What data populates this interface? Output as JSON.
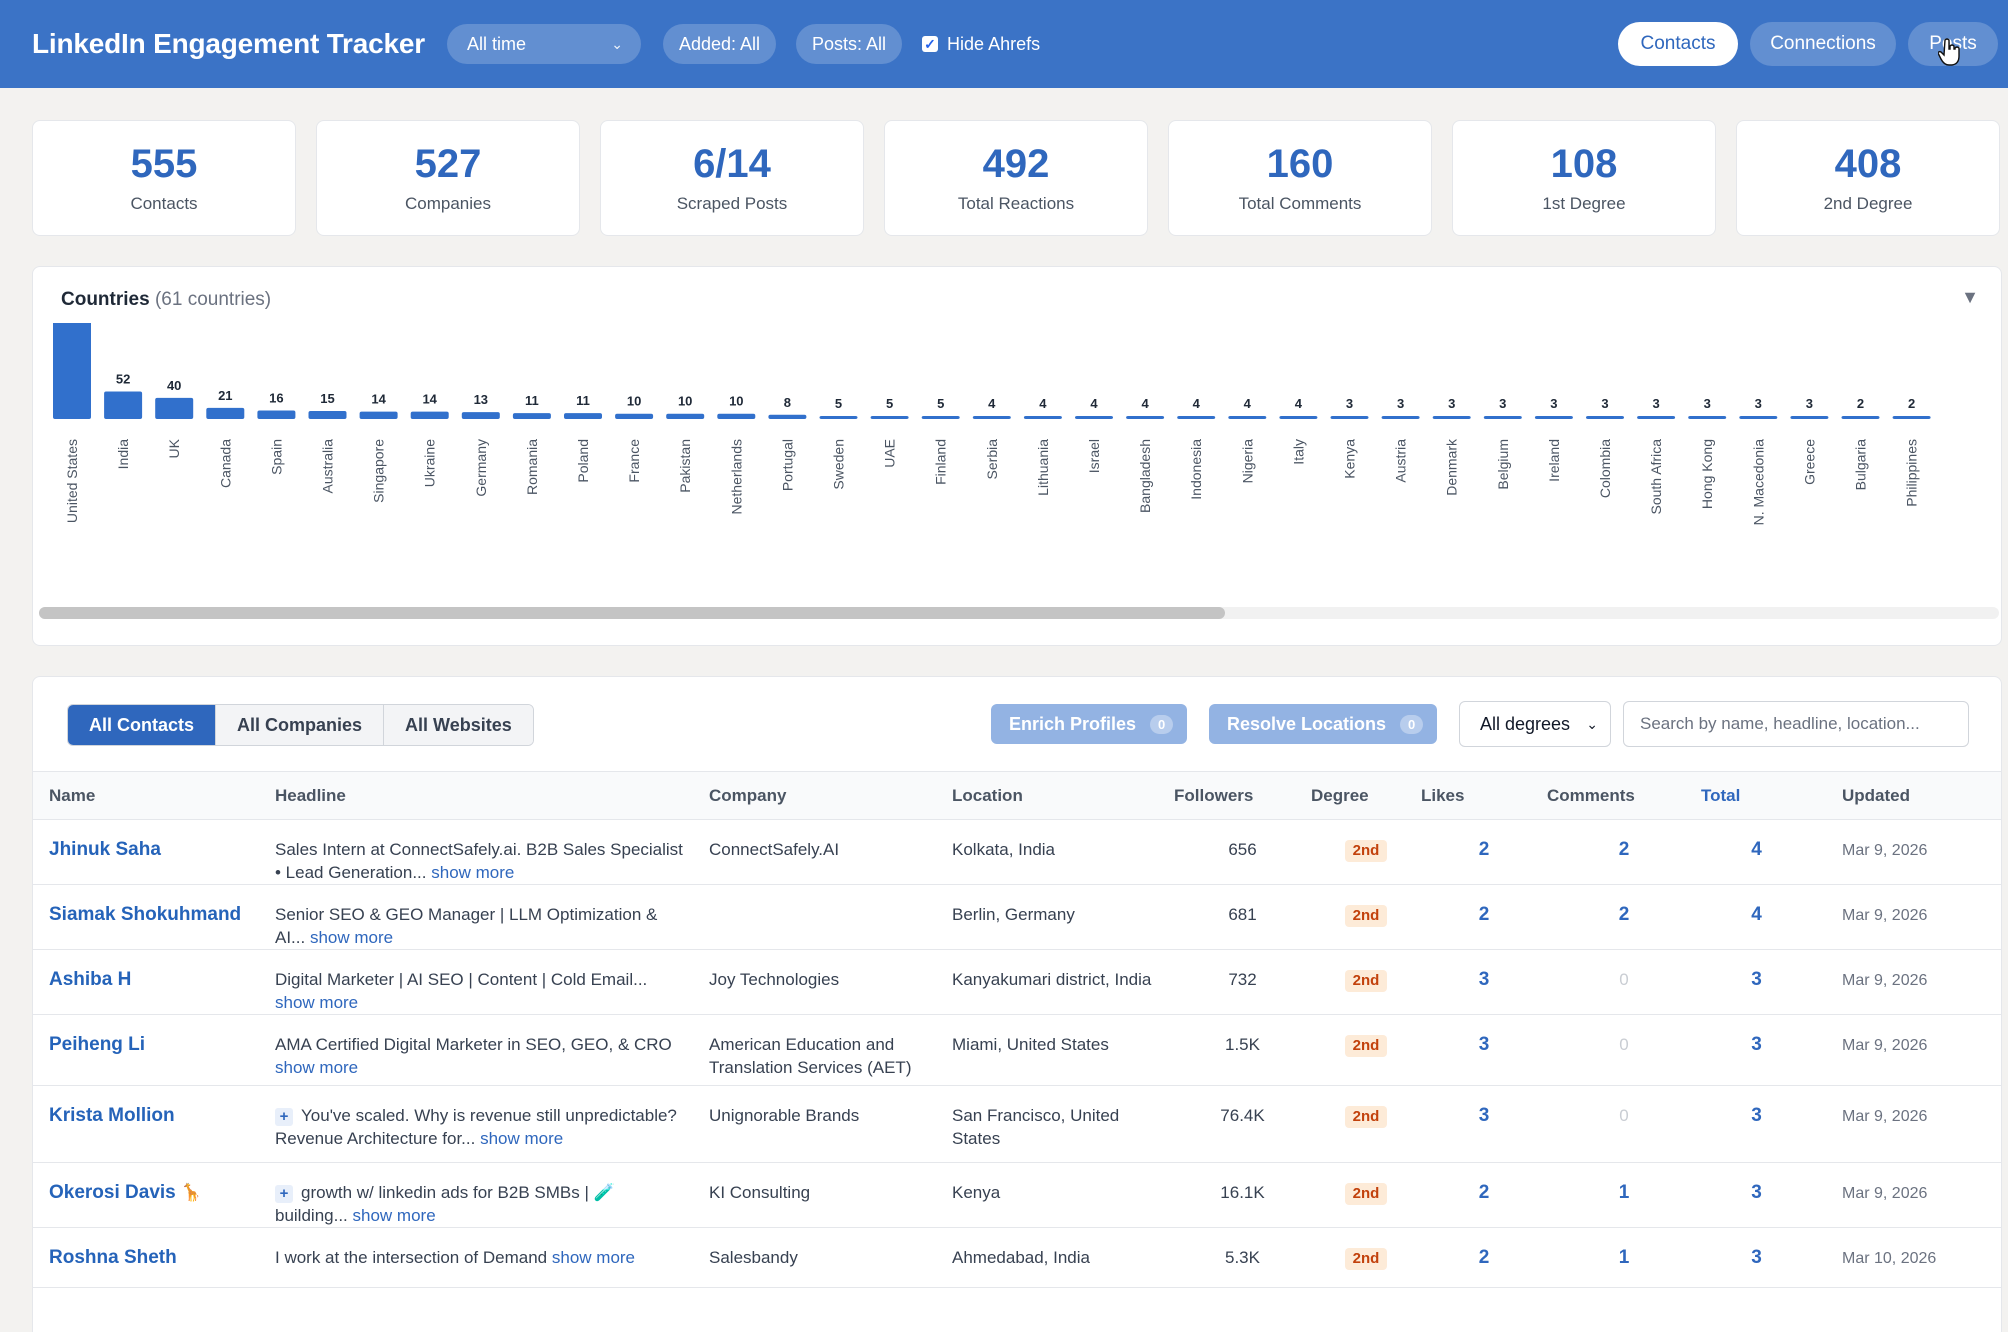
{
  "header": {
    "title": "LinkedIn Engagement Tracker",
    "time_filter": "All time",
    "added_filter": "Added: All",
    "posts_filter": "Posts: All",
    "hide_ahrefs_label": "Hide Ahrefs",
    "hide_ahrefs_checked": true,
    "nav": [
      {
        "label": "Contacts",
        "active": true
      },
      {
        "label": "Connections",
        "active": false
      },
      {
        "label": "Posts",
        "active": false
      }
    ]
  },
  "stats": [
    {
      "value": "555",
      "label": "Contacts"
    },
    {
      "value": "527",
      "label": "Companies"
    },
    {
      "value": "6/14",
      "label": "Scraped Posts"
    },
    {
      "value": "492",
      "label": "Total Reactions"
    },
    {
      "value": "160",
      "label": "Total Comments"
    },
    {
      "value": "108",
      "label": "1st Degree"
    },
    {
      "value": "408",
      "label": "2nd Degree"
    }
  ],
  "countries": {
    "title": "Countries",
    "count_label": "(61 countries)",
    "toggle_icon": "triangle-down-icon"
  },
  "chart_data": {
    "type": "bar",
    "title": "Countries",
    "categories": [
      "United States",
      "India",
      "UK",
      "Canada",
      "Spain",
      "Australia",
      "Singapore",
      "Ukraine",
      "Germany",
      "Romania",
      "Poland",
      "France",
      "Pakistan",
      "Netherlands",
      "Portugal",
      "Sweden",
      "UAE",
      "Finland",
      "Serbia",
      "Lithuania",
      "Israel",
      "Bangladesh",
      "Indonesia",
      "Nigeria",
      "Italy",
      "Kenya",
      "Austria",
      "Denmark",
      "Belgium",
      "Ireland",
      "Colombia",
      "South Africa",
      "Hong Kong",
      "N. Macedonia",
      "Greece",
      "Bulgaria",
      "Philippines"
    ],
    "values": [
      204,
      52,
      40,
      21,
      16,
      15,
      14,
      14,
      13,
      11,
      11,
      10,
      10,
      10,
      8,
      5,
      5,
      5,
      4,
      4,
      4,
      4,
      4,
      4,
      4,
      3,
      3,
      3,
      3,
      3,
      3,
      3,
      3,
      3,
      3,
      2,
      2
    ],
    "bar_color": "#3170cc",
    "grid": false,
    "xlabel": "",
    "ylabel": ""
  },
  "contacts": {
    "tabs": [
      {
        "label": "All Contacts",
        "active": true
      },
      {
        "label": "All Companies",
        "active": false
      },
      {
        "label": "All Websites",
        "active": false
      }
    ],
    "enrich_label": "Enrich Profiles",
    "enrich_count": "0",
    "resolve_label": "Resolve Locations",
    "resolve_count": "0",
    "degree_filter": "All degrees",
    "search_placeholder": "Search by name, headline, location...",
    "columns": {
      "name": "Name",
      "headline": "Headline",
      "company": "Company",
      "location": "Location",
      "followers": "Followers",
      "degree": "Degree",
      "likes": "Likes",
      "comments": "Comments",
      "total": "Total",
      "updated": "Updated"
    },
    "show_more": "show more",
    "rows": [
      {
        "name": "Jhinuk Saha",
        "name_suffix": "",
        "headline_prefix": "",
        "headline": "Sales Intern at ConnectSafely.ai. B2B Sales Specialist • Lead Generation...",
        "company": "ConnectSafely.AI",
        "location": "Kolkata, India",
        "followers": "656",
        "degree": "2nd",
        "likes": "2",
        "comments": "2",
        "total": "4",
        "updated": "Mar 9, 2026"
      },
      {
        "name": "Siamak Shokuhmand",
        "name_suffix": "",
        "headline_prefix": "",
        "headline": "Senior SEO & GEO Manager | LLM Optimization & AI...",
        "company": "",
        "location": "Berlin, Germany",
        "followers": "681",
        "degree": "2nd",
        "likes": "2",
        "comments": "2",
        "total": "4",
        "updated": "Mar 9, 2026"
      },
      {
        "name": "Ashiba H",
        "name_suffix": "",
        "headline_prefix": "",
        "headline": "Digital Marketer | AI SEO | Content | Cold Email...",
        "company": "Joy Technologies",
        "location": "Kanyakumari district, India",
        "followers": "732",
        "degree": "2nd",
        "likes": "3",
        "comments": "0",
        "total": "3",
        "updated": "Mar 9, 2026"
      },
      {
        "name": "Peiheng Li",
        "name_suffix": "",
        "headline_prefix": "",
        "headline": "AMA Certified Digital Marketer in SEO, GEO, & CRO",
        "company": "American Education and Translation Services (AET)",
        "location": "Miami, United States",
        "followers": "1.5K",
        "degree": "2nd",
        "likes": "3",
        "comments": "0",
        "total": "3",
        "updated": "Mar 9, 2026"
      },
      {
        "name": "Krista Mollion",
        "name_suffix": "",
        "headline_prefix": "+",
        "headline": "You've scaled. Why is revenue still unpredictable? Revenue Architecture for...",
        "company": "Unignorable Brands",
        "location": "San Francisco, United States",
        "followers": "76.4K",
        "degree": "2nd",
        "likes": "3",
        "comments": "0",
        "total": "3",
        "updated": "Mar 9, 2026"
      },
      {
        "name": "Okerosi Davis",
        "name_suffix": "🦒",
        "headline_prefix": "+",
        "headline": "growth w/ linkedin ads for B2B SMBs | 🧪 building...",
        "company": "KI Consulting",
        "location": "Kenya",
        "followers": "16.1K",
        "degree": "2nd",
        "likes": "2",
        "comments": "1",
        "total": "3",
        "updated": "Mar 9, 2026"
      },
      {
        "name": "Roshna Sheth",
        "name_suffix": "",
        "headline_prefix": "",
        "headline": "I work at the intersection of Demand",
        "company": "Salesbandy",
        "location": "Ahmedabad, India",
        "followers": "5.3K",
        "degree": "2nd",
        "likes": "2",
        "comments": "1",
        "total": "3",
        "updated": "Mar 10, 2026"
      }
    ]
  }
}
